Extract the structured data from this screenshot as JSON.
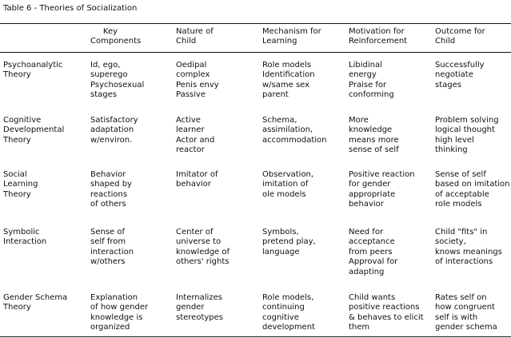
{
  "caption": "Table 6 - Theories of Socialization",
  "headers": [
    "",
    "     Key\nComponents",
    "Nature of\nChild",
    "Mechanism for\nLearning",
    "Motivation for\nReinforcement",
    "Outcome for\nChild"
  ],
  "rows": [
    {
      "theory": "Psychoanalytic\nTheory",
      "key_components": "Id, ego,\nsuperego\nPsychosexual\nstages",
      "nature": "Oedipal\ncomplex\nPenis envy\nPassive",
      "mechanism": "Role models\nIdentification\nw/same sex\nparent",
      "motivation": "Libidinal\nenergy\nPraise for\nconforming",
      "outcome": "Successfully\nnegotiate\nstages"
    },
    {
      "theory": "Cognitive\nDevelopmental\nTheory",
      "key_components": "Satisfactory\nadaptation\nw/environ.",
      "nature": "Active\nlearner\nActor and\nreactor",
      "mechanism": "Schema,\nassimilation,\naccommodation",
      "motivation": "More\nknowledge\nmeans more\nsense of self",
      "outcome": "Problem solving\nlogical thought\nhigh level\nthinking"
    },
    {
      "theory": "Social\nLearning\nTheory",
      "key_components": "Behavior\nshaped by\nreactions\nof others",
      "nature": "Imitator of\nbehavior",
      "mechanism": "Observation,\nimitation of\nole models",
      "motivation": "Positive reaction\nfor gender\nappropriate\nbehavior",
      "outcome": "Sense of self\nbased on imitation\nof acceptable\nrole models"
    },
    {
      "theory": "Symbolic\nInteraction",
      "key_components": "Sense of\nself from\ninteraction\nw/others",
      "nature": "Center of\nuniverse to\nknowledge of\nothers' rights",
      "mechanism": "Symbols,\npretend play,\nlanguage",
      "motivation": "Need for\nacceptance\nfrom peers\nApproval for\nadapting",
      "outcome": "Child \"fits\" in\nsociety,\nknows meanings\nof interactions"
    },
    {
      "theory": "Gender Schema\nTheory",
      "key_components": "Explanation\nof how gender\nknowledge is\norganized",
      "nature": "Internalizes\ngender\nstereotypes",
      "mechanism": "Role models,\ncontinuing\ncognitive\ndevelopment",
      "motivation": "Child wants\npositive reactions\n& behaves to elicit\nthem",
      "outcome": "Rates self on\nhow congruent\nself is with\ngender schema"
    }
  ]
}
